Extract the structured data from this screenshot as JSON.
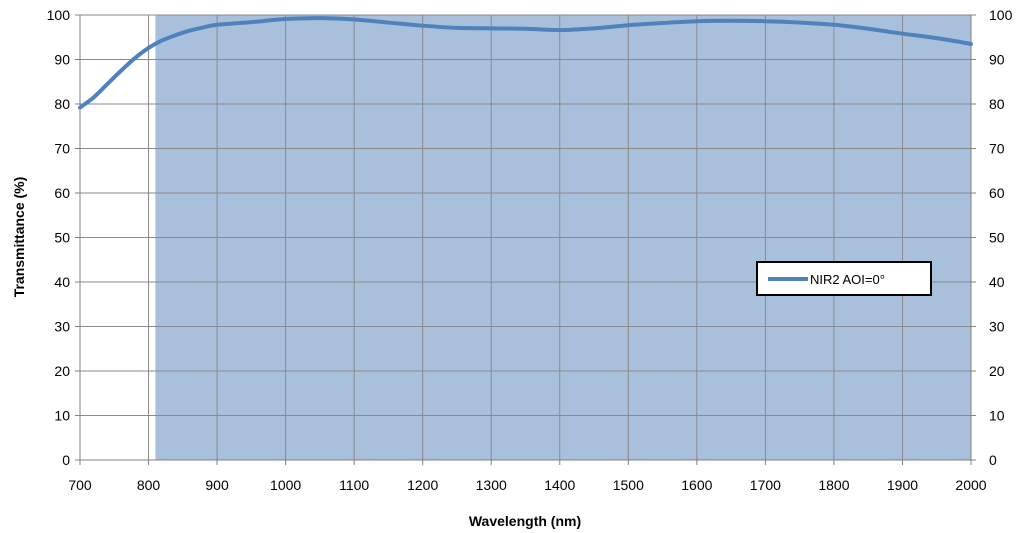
{
  "chart_data": {
    "type": "line",
    "title": "",
    "xlabel": "Wavelength (nm)",
    "ylabel": "Transmittance (%)",
    "xlim": [
      700,
      2000
    ],
    "ylim": [
      0,
      100
    ],
    "x_ticks": [
      "700",
      "800",
      "900",
      "1000",
      "1100",
      "1200",
      "1300",
      "1400",
      "1500",
      "1600",
      "1700",
      "1800",
      "1900",
      "2000"
    ],
    "y_ticks": [
      "0",
      "10",
      "20",
      "30",
      "40",
      "50",
      "60",
      "70",
      "80",
      "90",
      "100"
    ],
    "grid": true,
    "secondary_y_axis": true,
    "shaded_band": [
      810,
      2000
    ],
    "band_color": "#a9c0dd",
    "line_color": "#4f81bd",
    "legend": {
      "position": "right",
      "entries": [
        "NIR2 AOI=0°"
      ]
    },
    "series": [
      {
        "name": "NIR2 AOI=0°",
        "x": [
          700,
          720,
          740,
          760,
          780,
          800,
          820,
          840,
          860,
          880,
          900,
          950,
          1000,
          1050,
          1100,
          1150,
          1200,
          1250,
          1300,
          1350,
          1400,
          1450,
          1500,
          1550,
          1600,
          1650,
          1700,
          1750,
          1800,
          1850,
          1900,
          1950,
          2000
        ],
        "y": [
          79.2,
          81.5,
          84.5,
          87.5,
          90.3,
          92.6,
          94.3,
          95.5,
          96.5,
          97.2,
          97.8,
          98.4,
          99.1,
          99.3,
          99.0,
          98.3,
          97.6,
          97.1,
          97.0,
          96.9,
          96.6,
          97.0,
          97.7,
          98.2,
          98.6,
          98.7,
          98.6,
          98.3,
          97.8,
          96.9,
          95.8,
          94.8,
          93.5
        ]
      }
    ]
  }
}
